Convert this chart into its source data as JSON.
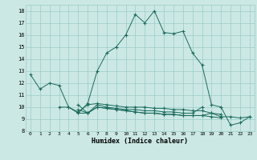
{
  "title": "",
  "xlabel": "Humidex (Indice chaleur)",
  "xlim": [
    -0.5,
    23.5
  ],
  "ylim": [
    8,
    18.5
  ],
  "yticks": [
    8,
    9,
    10,
    11,
    12,
    13,
    14,
    15,
    16,
    17,
    18
  ],
  "xticks": [
    0,
    1,
    2,
    3,
    4,
    5,
    6,
    7,
    8,
    9,
    10,
    11,
    12,
    13,
    14,
    15,
    16,
    17,
    18,
    19,
    20,
    21,
    22,
    23
  ],
  "bg_color": "#cce8e4",
  "grid_color": "#99ccc8",
  "line_color": "#1a6b5e",
  "lines": [
    [
      12.7,
      11.5,
      12.0,
      11.8,
      10.0,
      9.5,
      10.3,
      13.0,
      14.5,
      15.0,
      16.0,
      17.7,
      17.0,
      18.0,
      16.2,
      16.1,
      16.3,
      14.5,
      13.5,
      10.2,
      10.0,
      8.5,
      8.7,
      9.2
    ],
    [
      null,
      null,
      null,
      10.0,
      10.0,
      9.6,
      10.2,
      10.3,
      10.2,
      10.1,
      10.0,
      10.0,
      10.0,
      9.9,
      9.9,
      9.8,
      9.8,
      9.7,
      9.7,
      9.5,
      9.4,
      null,
      null,
      null
    ],
    [
      null,
      null,
      null,
      null,
      null,
      9.8,
      9.5,
      10.0,
      9.9,
      9.8,
      9.7,
      9.6,
      9.5,
      9.5,
      9.4,
      9.4,
      9.3,
      9.3,
      9.3,
      9.2,
      9.1,
      null,
      null,
      null
    ],
    [
      null,
      null,
      null,
      null,
      null,
      9.5,
      9.5,
      10.0,
      9.9,
      9.8,
      9.7,
      9.6,
      9.5,
      9.5,
      9.4,
      9.4,
      9.3,
      9.3,
      9.3,
      9.5,
      9.2,
      9.2,
      9.1,
      9.2
    ],
    [
      null,
      null,
      null,
      null,
      null,
      10.2,
      9.5,
      10.2,
      10.0,
      9.9,
      9.8,
      9.8,
      9.7,
      9.7,
      9.6,
      9.6,
      9.5,
      9.5,
      10.0,
      null,
      null,
      null,
      null,
      null
    ]
  ]
}
